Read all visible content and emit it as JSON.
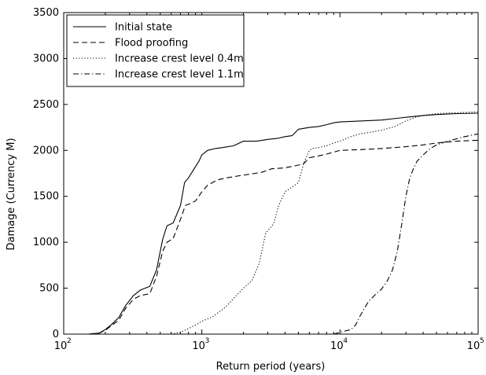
{
  "chart_data": {
    "type": "line",
    "title": "",
    "xlabel": "Return period (years)",
    "ylabel": "Damage (Currency M)",
    "xscale": "log",
    "xlim": [
      100,
      100000
    ],
    "ylim": [
      0,
      3500
    ],
    "yticks": [
      "0",
      "500",
      "1000",
      "1500",
      "2000",
      "2500",
      "3000",
      "3500"
    ],
    "xticks": [
      {
        "base": "10",
        "exp": "2"
      },
      {
        "base": "10",
        "exp": "3"
      },
      {
        "base": "10",
        "exp": "4"
      },
      {
        "base": "10",
        "exp": "5"
      }
    ],
    "grid": false,
    "legend_position": "top-left",
    "series": [
      {
        "name": "Initial state",
        "style": "solid",
        "x": [
          100,
          150,
          180,
          200,
          220,
          250,
          280,
          320,
          360,
          420,
          470,
          520,
          560,
          620,
          700,
          750,
          800,
          880,
          950,
          1000,
          1100,
          1250,
          1400,
          1700,
          2000,
          2500,
          3000,
          3500,
          4000,
          4500,
          5000,
          5500,
          6000,
          7000,
          8000,
          9000,
          10000,
          14000,
          20000,
          30000,
          40000,
          50000,
          70000,
          100000
        ],
        "y": [
          0,
          0,
          10,
          50,
          100,
          180,
          310,
          420,
          480,
          520,
          700,
          1030,
          1180,
          1210,
          1400,
          1650,
          1700,
          1800,
          1880,
          1950,
          2000,
          2020,
          2030,
          2050,
          2100,
          2100,
          2120,
          2130,
          2150,
          2160,
          2230,
          2240,
          2250,
          2260,
          2280,
          2300,
          2310,
          2320,
          2330,
          2360,
          2380,
          2390,
          2400,
          2405
        ]
      },
      {
        "name": "Flood proofing",
        "style": "dashed",
        "x": [
          100,
          150,
          180,
          200,
          220,
          250,
          280,
          320,
          360,
          420,
          470,
          520,
          560,
          620,
          700,
          760,
          820,
          900,
          1000,
          1100,
          1300,
          1500,
          1800,
          2200,
          2700,
          3200,
          4000,
          5000,
          5500,
          6000,
          7000,
          8000,
          10000,
          15000,
          20000,
          30000,
          40000,
          50000,
          70000,
          100000
        ],
        "y": [
          0,
          0,
          10,
          40,
          90,
          150,
          280,
          380,
          420,
          440,
          630,
          900,
          1000,
          1040,
          1250,
          1400,
          1420,
          1450,
          1550,
          1620,
          1680,
          1700,
          1720,
          1740,
          1760,
          1800,
          1810,
          1840,
          1860,
          1920,
          1940,
          1960,
          2000,
          2010,
          2020,
          2040,
          2060,
          2080,
          2100,
          2110
        ]
      },
      {
        "name": "Increase crest level 0.4m",
        "style": "dotted",
        "x": [
          600,
          700,
          800,
          900,
          1000,
          1200,
          1500,
          1800,
          2000,
          2300,
          2600,
          2900,
          3100,
          3300,
          3600,
          4000,
          4500,
          5000,
          5500,
          6000,
          6300,
          7000,
          8000,
          9000,
          10000,
          12000,
          14000,
          17000,
          20000,
          25000,
          30000,
          35000,
          40000,
          50000,
          70000,
          100000
        ],
        "y": [
          0,
          20,
          60,
          100,
          140,
          190,
          300,
          430,
          500,
          580,
          770,
          1100,
          1150,
          1200,
          1400,
          1550,
          1600,
          1650,
          1870,
          2000,
          2020,
          2030,
          2050,
          2080,
          2100,
          2150,
          2180,
          2200,
          2220,
          2260,
          2320,
          2360,
          2380,
          2400,
          2410,
          2420
        ]
      },
      {
        "name": "Increase crest level 1.1m",
        "style": "dashdot",
        "x": [
          9000,
          10000,
          12000,
          13000,
          14000,
          16000,
          18000,
          20000,
          22000,
          24000,
          26000,
          28000,
          30000,
          32000,
          34000,
          36000,
          40000,
          45000,
          50000,
          60000,
          80000,
          100000
        ],
        "y": [
          0,
          20,
          50,
          100,
          200,
          350,
          430,
          490,
          580,
          700,
          900,
          1200,
          1500,
          1700,
          1800,
          1880,
          1950,
          2020,
          2060,
          2100,
          2150,
          2180
        ]
      }
    ]
  }
}
